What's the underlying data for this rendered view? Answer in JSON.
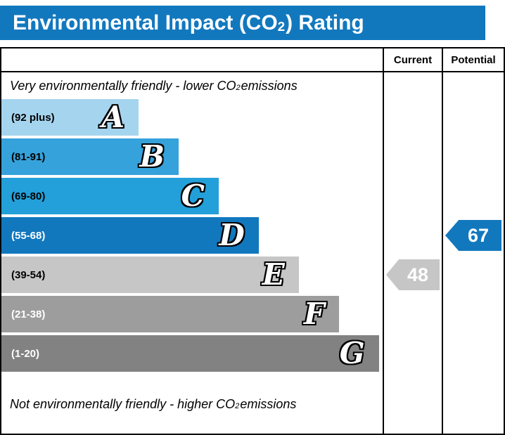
{
  "title": {
    "prefix": "Environmental Impact (CO",
    "sub": "2",
    "suffix": ") Rating"
  },
  "header": {
    "current": "Current",
    "potential": "Potential"
  },
  "captions": {
    "top": {
      "prefix": "Very environmentally friendly - lower CO",
      "sub": "2",
      "suffix": " emissions"
    },
    "bottom": {
      "prefix": "Not environmentally friendly - higher CO",
      "sub": "2",
      "suffix": " emissions"
    }
  },
  "chart_data": {
    "type": "bar",
    "subtype": "environmental-impact-co2-rating",
    "title": "Environmental Impact (CO2) Rating",
    "bands": [
      {
        "letter": "A",
        "range_label": "(92 plus)",
        "range_min": 92,
        "range_max": 100,
        "color": "#a5d5ee",
        "label_color": "#000000",
        "width_pct": 36
      },
      {
        "letter": "B",
        "range_label": "(81-91)",
        "range_min": 81,
        "range_max": 91,
        "color": "#36a2db",
        "label_color": "#000000",
        "width_pct": 46.5
      },
      {
        "letter": "C",
        "range_label": "(69-80)",
        "range_min": 69,
        "range_max": 80,
        "color": "#23a0d9",
        "label_color": "#000000",
        "width_pct": 57
      },
      {
        "letter": "D",
        "range_label": "(55-68)",
        "range_min": 55,
        "range_max": 68,
        "color": "#1278be",
        "label_color": "#ffffff",
        "width_pct": 67.5
      },
      {
        "letter": "E",
        "range_label": "(39-54)",
        "range_min": 39,
        "range_max": 54,
        "color": "#c6c6c6",
        "label_color": "#000000",
        "width_pct": 78
      },
      {
        "letter": "F",
        "range_label": "(21-38)",
        "range_min": 21,
        "range_max": 38,
        "color": "#9d9d9d",
        "label_color": "#ffffff",
        "width_pct": 88.5
      },
      {
        "letter": "G",
        "range_label": "(1-20)",
        "range_min": 1,
        "range_max": 20,
        "color": "#828282",
        "label_color": "#ffffff",
        "width_pct": 99
      }
    ],
    "markers": {
      "current": {
        "label": "48",
        "value": 48,
        "band": "E",
        "band_index": 4,
        "color": "#c6c6c6"
      },
      "potential": {
        "label": "67",
        "value": 67,
        "band": "D",
        "band_index": 3,
        "color": "#1278be"
      }
    }
  }
}
